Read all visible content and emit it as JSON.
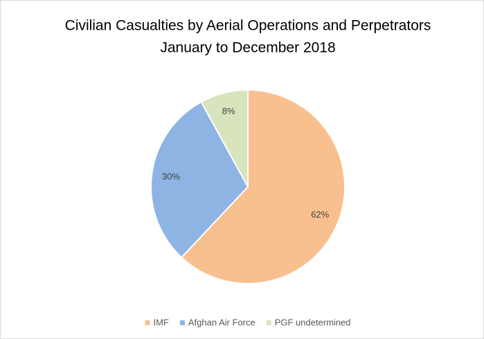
{
  "chart_data": {
    "type": "pie",
    "title": "Civilian Casualties by Aerial Operations and Perpetrators",
    "subtitle": "January to December 2018",
    "categories": [
      "IMF",
      "Afghan Air Force",
      "PGF undetermined"
    ],
    "values": [
      62,
      30,
      8
    ],
    "value_labels": [
      "62%",
      "30%",
      "8%"
    ],
    "colors": [
      "#f9c08f",
      "#8eb4e3",
      "#d7e4bd"
    ],
    "legend": "bottom"
  }
}
